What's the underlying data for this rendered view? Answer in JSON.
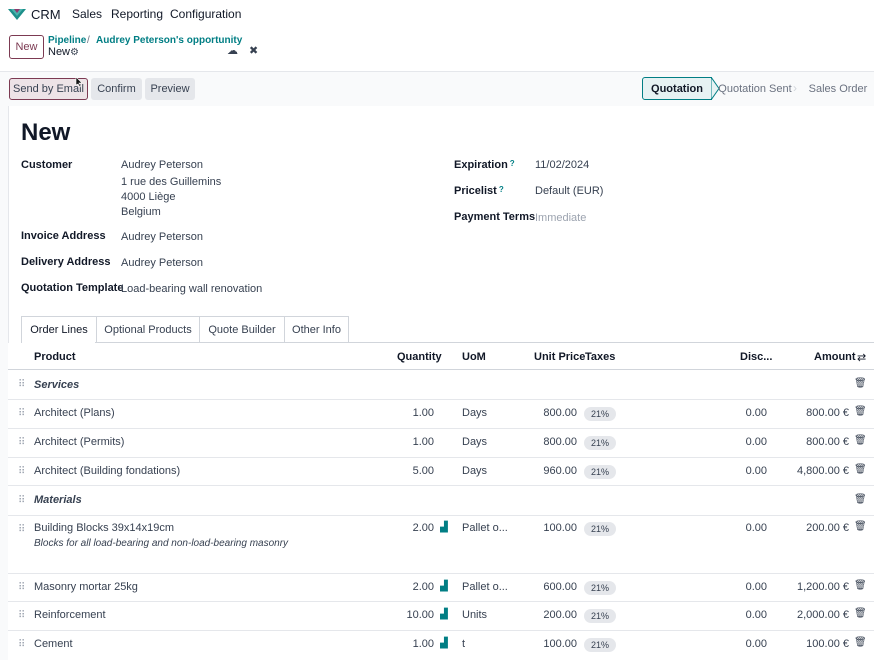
{
  "topnav": {
    "app_name": "CRM",
    "menus": [
      "Sales",
      "Reporting",
      "Configuration"
    ]
  },
  "breadcrumb": {
    "new_button": "New",
    "items": [
      "Pipeline",
      "Audrey Peterson's opportunity"
    ],
    "separator": "/",
    "current": "New"
  },
  "actions": {
    "send_email": "Send by Email",
    "confirm": "Confirm",
    "preview": "Preview"
  },
  "statusbar": [
    "Quotation",
    "Quotation Sent",
    "Sales Order"
  ],
  "form": {
    "title": "New",
    "customer_label": "Customer",
    "customer_lines": [
      "Audrey Peterson",
      "1 rue des Guillemins",
      "4000 Liège",
      "Belgium"
    ],
    "invoice_label": "Invoice Address",
    "invoice_value": "Audrey Peterson",
    "delivery_label": "Delivery Address",
    "delivery_value": "Audrey Peterson",
    "template_label": "Quotation Template",
    "template_value": "Load-bearing wall renovation",
    "expiration_label": "Expiration",
    "expiration_value": "11/02/2024",
    "pricelist_label": "Pricelist",
    "pricelist_value": "Default (EUR)",
    "payment_label": "Payment Terms",
    "payment_value": "Immediate",
    "tooltip_mark": "?"
  },
  "tabs": [
    "Order Lines",
    "Optional Products",
    "Quote Builder",
    "Other Info"
  ],
  "table": {
    "headers": {
      "product": "Product",
      "quantity": "Quantity",
      "uom": "UoM",
      "unit_price": "Unit Price",
      "taxes": "Taxes",
      "disc": "Disc...",
      "amount": "Amount"
    },
    "sections": [
      "Services",
      "Materials"
    ],
    "rows": [
      {
        "product": "Architect (Plans)",
        "qty": "1.00",
        "uom": "Days",
        "price": "800.00",
        "tax": "21%",
        "disc": "0.00",
        "amount": "800.00 €"
      },
      {
        "product": "Architect (Permits)",
        "qty": "1.00",
        "uom": "Days",
        "price": "800.00",
        "tax": "21%",
        "disc": "0.00",
        "amount": "800.00 €"
      },
      {
        "product": "Architect (Building fondations)",
        "qty": "5.00",
        "uom": "Days",
        "price": "960.00",
        "tax": "21%",
        "disc": "0.00",
        "amount": "4,800.00 €"
      },
      {
        "product": "Building Blocks 39x14x19cm",
        "desc": "Blocks for all load-bearing and non-load-bearing masonry",
        "qty": "2.00",
        "uom": "Pallet o...",
        "price": "100.00",
        "tax": "21%",
        "disc": "0.00",
        "amount": "200.00 €"
      },
      {
        "product": "Masonry mortar 25kg",
        "qty": "2.00",
        "uom": "Pallet o...",
        "price": "600.00",
        "tax": "21%",
        "disc": "0.00",
        "amount": "1,200.00 €"
      },
      {
        "product": "Reinforcement",
        "qty": "10.00",
        "uom": "Units",
        "price": "200.00",
        "tax": "21%",
        "disc": "0.00",
        "amount": "2,000.00 €"
      },
      {
        "product": "Cement",
        "qty": "1.00",
        "uom": "t",
        "price": "100.00",
        "tax": "21%",
        "disc": "0.00",
        "amount": "100.00 €"
      }
    ]
  },
  "icons": {
    "handle": "⠿",
    "trash": "🗑",
    "gear": "⚙",
    "cloud": "☁",
    "close": "✖",
    "chart": "▟",
    "settings": "⇄"
  },
  "colors": {
    "accent": "#017e84",
    "primary": "#7c3a52"
  }
}
